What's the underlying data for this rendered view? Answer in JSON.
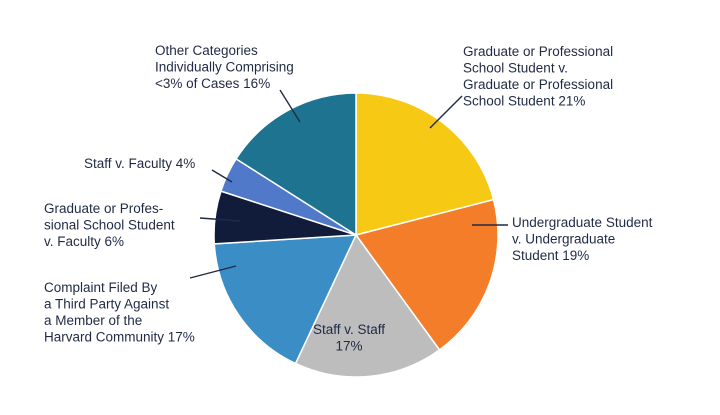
{
  "chart_data": {
    "type": "pie",
    "title": "",
    "slices": [
      {
        "name": "Graduate or Professional School Student v. Graduate or Professional School Student",
        "value": 21,
        "color": "#F6C915",
        "label_lines": [
          "Graduate or Professional",
          "School Student v.",
          "Graduate or Professional",
          "School Student 21%"
        ]
      },
      {
        "name": "Undergraduate Student v. Undergraduate Student",
        "value": 19,
        "color": "#F47D2A",
        "label_lines": [
          "Undergraduate Student",
          "v. Undergraduate",
          "Student 19%"
        ]
      },
      {
        "name": "Staff v. Staff",
        "value": 17,
        "color": "#BDBDBD",
        "label_lines": [
          "Staff v. Staff",
          "17%"
        ]
      },
      {
        "name": "Complaint Filed By a Third Party Against a Member of the Harvard Community",
        "value": 17,
        "color": "#3A8DC5",
        "label_lines": [
          "Complaint Filed By",
          "a Third Party Against",
          "a Member of the",
          "Harvard Community 17%"
        ]
      },
      {
        "name": "Graduate or Professional School Student v. Faculty",
        "value": 6,
        "color": "#111B3A",
        "label_lines": [
          "Graduate or Profes-",
          "sional School Student",
          "v. Faculty 6%"
        ]
      },
      {
        "name": "Staff v. Faculty",
        "value": 4,
        "color": "#5079C9",
        "label_lines": [
          "Staff v. Faculty 4%"
        ]
      },
      {
        "name": "Other Categories Individually Comprising <3% of Cases",
        "value": 16,
        "color": "#1D7390",
        "label_lines": [
          "Other Categories",
          "Individually Comprising",
          "<3% of Cases 16%"
        ]
      }
    ]
  }
}
